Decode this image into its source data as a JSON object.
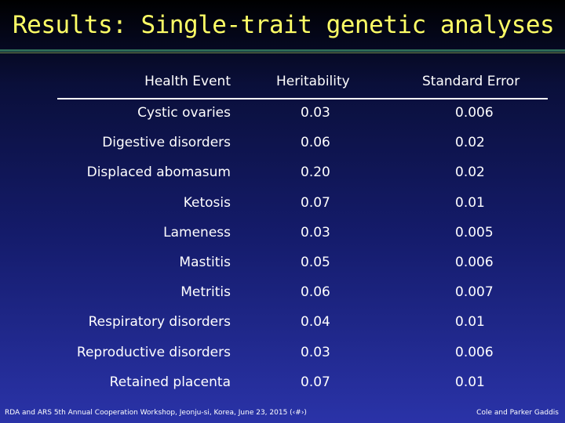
{
  "slide": {
    "title": "Results: Single-trait genetic analyses"
  },
  "table": {
    "headers": [
      "Health Event",
      "Heritability",
      "Standard Error"
    ],
    "rows": [
      [
        "Cystic ovaries",
        "0.03",
        "0.006"
      ],
      [
        "Digestive disorders",
        "0.06",
        "0.02"
      ],
      [
        "Displaced abomasum",
        "0.20",
        "0.02"
      ],
      [
        "Ketosis",
        "0.07",
        "0.01"
      ],
      [
        "Lameness",
        "0.03",
        "0.005"
      ],
      [
        "Mastitis",
        "0.05",
        "0.006"
      ],
      [
        "Metritis",
        "0.06",
        "0.007"
      ],
      [
        "Respiratory disorders",
        "0.04",
        "0.01"
      ],
      [
        "Reproductive disorders",
        "0.03",
        "0.006"
      ],
      [
        "Retained placenta",
        "0.07",
        "0.01"
      ]
    ]
  },
  "footer": {
    "left": "RDA and ARS 5th Annual Cooperation Workshop, Jeonju-si, Korea, June 23, 2015 (‹#›)",
    "right": "Cole and Parker Gaddis"
  },
  "colors": {
    "title": "#ffff66",
    "text": "#ffffff",
    "rule": "#2e6b57"
  }
}
